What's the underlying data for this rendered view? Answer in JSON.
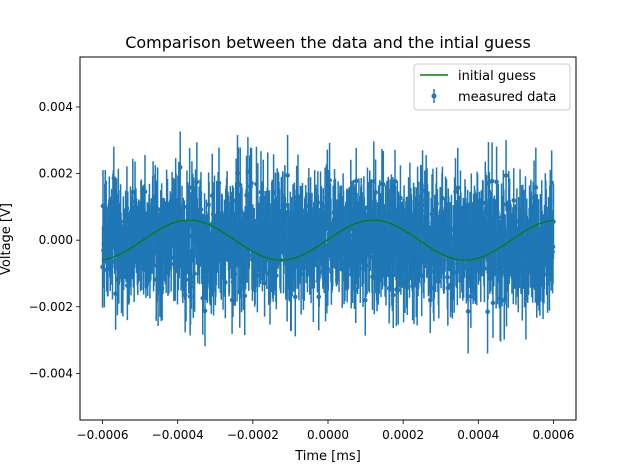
{
  "chart_data": {
    "type": "scatter",
    "title": "Comparison between the data and the intial guess",
    "xlabel": "Time [ms]",
    "ylabel": "Voltage [V]",
    "xlim": [
      -0.00066,
      0.00066
    ],
    "ylim": [
      -0.0054,
      0.0055
    ],
    "xticks": [
      -0.0006,
      -0.0004,
      -0.0002,
      0.0,
      0.0002,
      0.0004,
      0.0006
    ],
    "xtick_labels": [
      "−0.0006",
      "−0.0004",
      "−0.0002",
      "0.0000",
      "0.0002",
      "0.0004",
      "0.0006"
    ],
    "yticks": [
      -0.004,
      -0.002,
      0.0,
      0.002,
      0.004
    ],
    "ytick_labels": [
      "−0.004",
      "−0.002",
      "0.000",
      "0.002",
      "0.004"
    ],
    "grid": false,
    "legend_position": "top-right",
    "series": [
      {
        "name": "initial guess",
        "kind": "line",
        "color": "#008000",
        "function": "sine",
        "amplitude": 0.0006,
        "period": 0.00049,
        "peak_x": -0.00037,
        "x_range": [
          -0.0006,
          0.0006
        ]
      },
      {
        "name": "measured data",
        "kind": "errorbar",
        "color": "#1f77b4",
        "n_points": 1000,
        "x_range": [
          -0.0006,
          0.0006
        ],
        "typical_spread": 0.0012,
        "typical_error": 0.0011,
        "y_extremes": [
          -0.0044,
          0.0049
        ]
      }
    ]
  }
}
